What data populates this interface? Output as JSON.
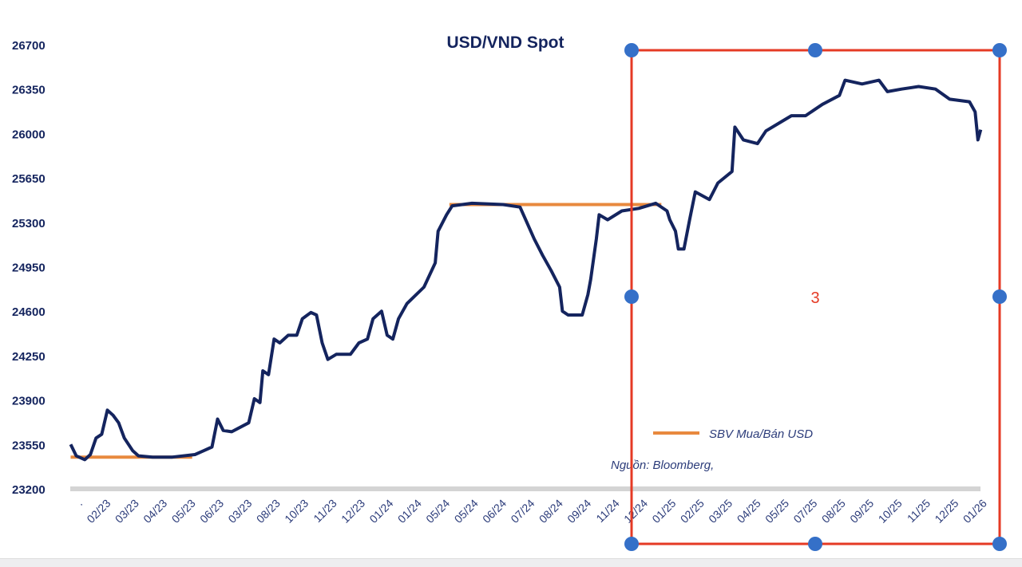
{
  "chart_data": {
    "type": "line",
    "title": "USD/VND Spot",
    "xlabel": "",
    "ylabel": "",
    "ylim": [
      23200,
      26700
    ],
    "yticks": [
      26700,
      26350,
      26000,
      25650,
      25300,
      24950,
      24600,
      24250,
      23900,
      23550,
      23200
    ],
    "xtick_labels": [
      ".",
      "02/23",
      "03/23",
      "04/23",
      "05/23",
      "06/23",
      "03/23",
      "08/23",
      "10/23",
      "11/23",
      "12/23",
      "01/24",
      "01/24",
      "05/24",
      "05/24",
      "06/24",
      "07/24",
      "08/24",
      "09/24",
      "11/24",
      "12/24",
      "01/25",
      "02/25",
      "03/25",
      "04/25",
      "05/25",
      "07/25",
      "08/25",
      "09/25",
      "10/25",
      "11/25",
      "12/25",
      "01/26"
    ],
    "x_units": "position along x-axis measured in tick-label index",
    "series": [
      {
        "name": "USD/VND Spot",
        "color": "#14245e",
        "points": [
          [
            -0.1,
            23550
          ],
          [
            0.1,
            23460
          ],
          [
            0.4,
            23430
          ],
          [
            0.6,
            23470
          ],
          [
            0.8,
            23600
          ],
          [
            1.0,
            23630
          ],
          [
            1.2,
            23820
          ],
          [
            1.4,
            23780
          ],
          [
            1.6,
            23720
          ],
          [
            1.8,
            23600
          ],
          [
            2.1,
            23500
          ],
          [
            2.3,
            23460
          ],
          [
            2.8,
            23450
          ],
          [
            3.5,
            23450
          ],
          [
            4.3,
            23470
          ],
          [
            4.6,
            23500
          ],
          [
            4.9,
            23530
          ],
          [
            5.1,
            23750
          ],
          [
            5.3,
            23660
          ],
          [
            5.6,
            23650
          ],
          [
            6.2,
            23720
          ],
          [
            6.4,
            23910
          ],
          [
            6.6,
            23880
          ],
          [
            6.7,
            24130
          ],
          [
            6.9,
            24100
          ],
          [
            7.1,
            24380
          ],
          [
            7.3,
            24350
          ],
          [
            7.6,
            24410
          ],
          [
            7.9,
            24410
          ],
          [
            8.1,
            24540
          ],
          [
            8.4,
            24590
          ],
          [
            8.6,
            24570
          ],
          [
            8.8,
            24350
          ],
          [
            9.0,
            24220
          ],
          [
            9.3,
            24260
          ],
          [
            9.8,
            24260
          ],
          [
            10.1,
            24350
          ],
          [
            10.4,
            24380
          ],
          [
            10.6,
            24540
          ],
          [
            10.9,
            24600
          ],
          [
            11.1,
            24410
          ],
          [
            11.3,
            24380
          ],
          [
            11.5,
            24540
          ],
          [
            11.8,
            24660
          ],
          [
            12.4,
            24790
          ],
          [
            12.8,
            24980
          ],
          [
            12.9,
            25230
          ],
          [
            13.2,
            25360
          ],
          [
            13.4,
            25430
          ],
          [
            14.1,
            25450
          ],
          [
            15.2,
            25440
          ],
          [
            15.8,
            25420
          ],
          [
            16.0,
            25320
          ],
          [
            16.3,
            25170
          ],
          [
            16.6,
            25040
          ],
          [
            16.9,
            24920
          ],
          [
            17.2,
            24790
          ],
          [
            17.3,
            24600
          ],
          [
            17.5,
            24570
          ],
          [
            18.0,
            24570
          ],
          [
            18.2,
            24730
          ],
          [
            18.3,
            24850
          ],
          [
            18.5,
            25170
          ],
          [
            18.6,
            25360
          ],
          [
            18.9,
            25320
          ],
          [
            19.4,
            25390
          ],
          [
            20.0,
            25410
          ],
          [
            20.6,
            25450
          ],
          [
            21.0,
            25390
          ],
          [
            21.1,
            25320
          ],
          [
            21.3,
            25230
          ],
          [
            21.4,
            25090
          ],
          [
            21.6,
            25090
          ],
          [
            21.8,
            25320
          ],
          [
            22.0,
            25540
          ],
          [
            22.5,
            25480
          ],
          [
            22.8,
            25610
          ],
          [
            23.3,
            25700
          ],
          [
            23.4,
            26050
          ],
          [
            23.7,
            25950
          ],
          [
            24.2,
            25920
          ],
          [
            24.5,
            26020
          ],
          [
            25.1,
            26100
          ],
          [
            25.4,
            26140
          ],
          [
            25.9,
            26140
          ],
          [
            26.5,
            26230
          ],
          [
            27.1,
            26300
          ],
          [
            27.3,
            26420
          ],
          [
            27.9,
            26390
          ],
          [
            28.5,
            26420
          ],
          [
            28.8,
            26330
          ],
          [
            29.3,
            26350
          ],
          [
            29.9,
            26370
          ],
          [
            30.5,
            26350
          ],
          [
            31.0,
            26270
          ],
          [
            31.7,
            26250
          ],
          [
            31.9,
            26170
          ],
          [
            32.0,
            25950
          ],
          [
            32.1,
            26030
          ]
        ]
      },
      {
        "name": "SBV Mua/Bán USD",
        "color": "#e8893e",
        "segments": [
          [
            [
              -0.1,
              23450
            ],
            [
              4.2,
              23450
            ]
          ],
          [
            [
              13.3,
              25440
            ],
            [
              20.8,
              25440
            ]
          ]
        ]
      }
    ],
    "legend": {
      "label": "SBV Mua/Bán USD",
      "placement": "bottom-right"
    },
    "source": "Nguồn: Bloomberg,",
    "grid": false
  },
  "selection": {
    "label": "3",
    "color": "#e53a24",
    "handle_color": "#3570c8"
  }
}
